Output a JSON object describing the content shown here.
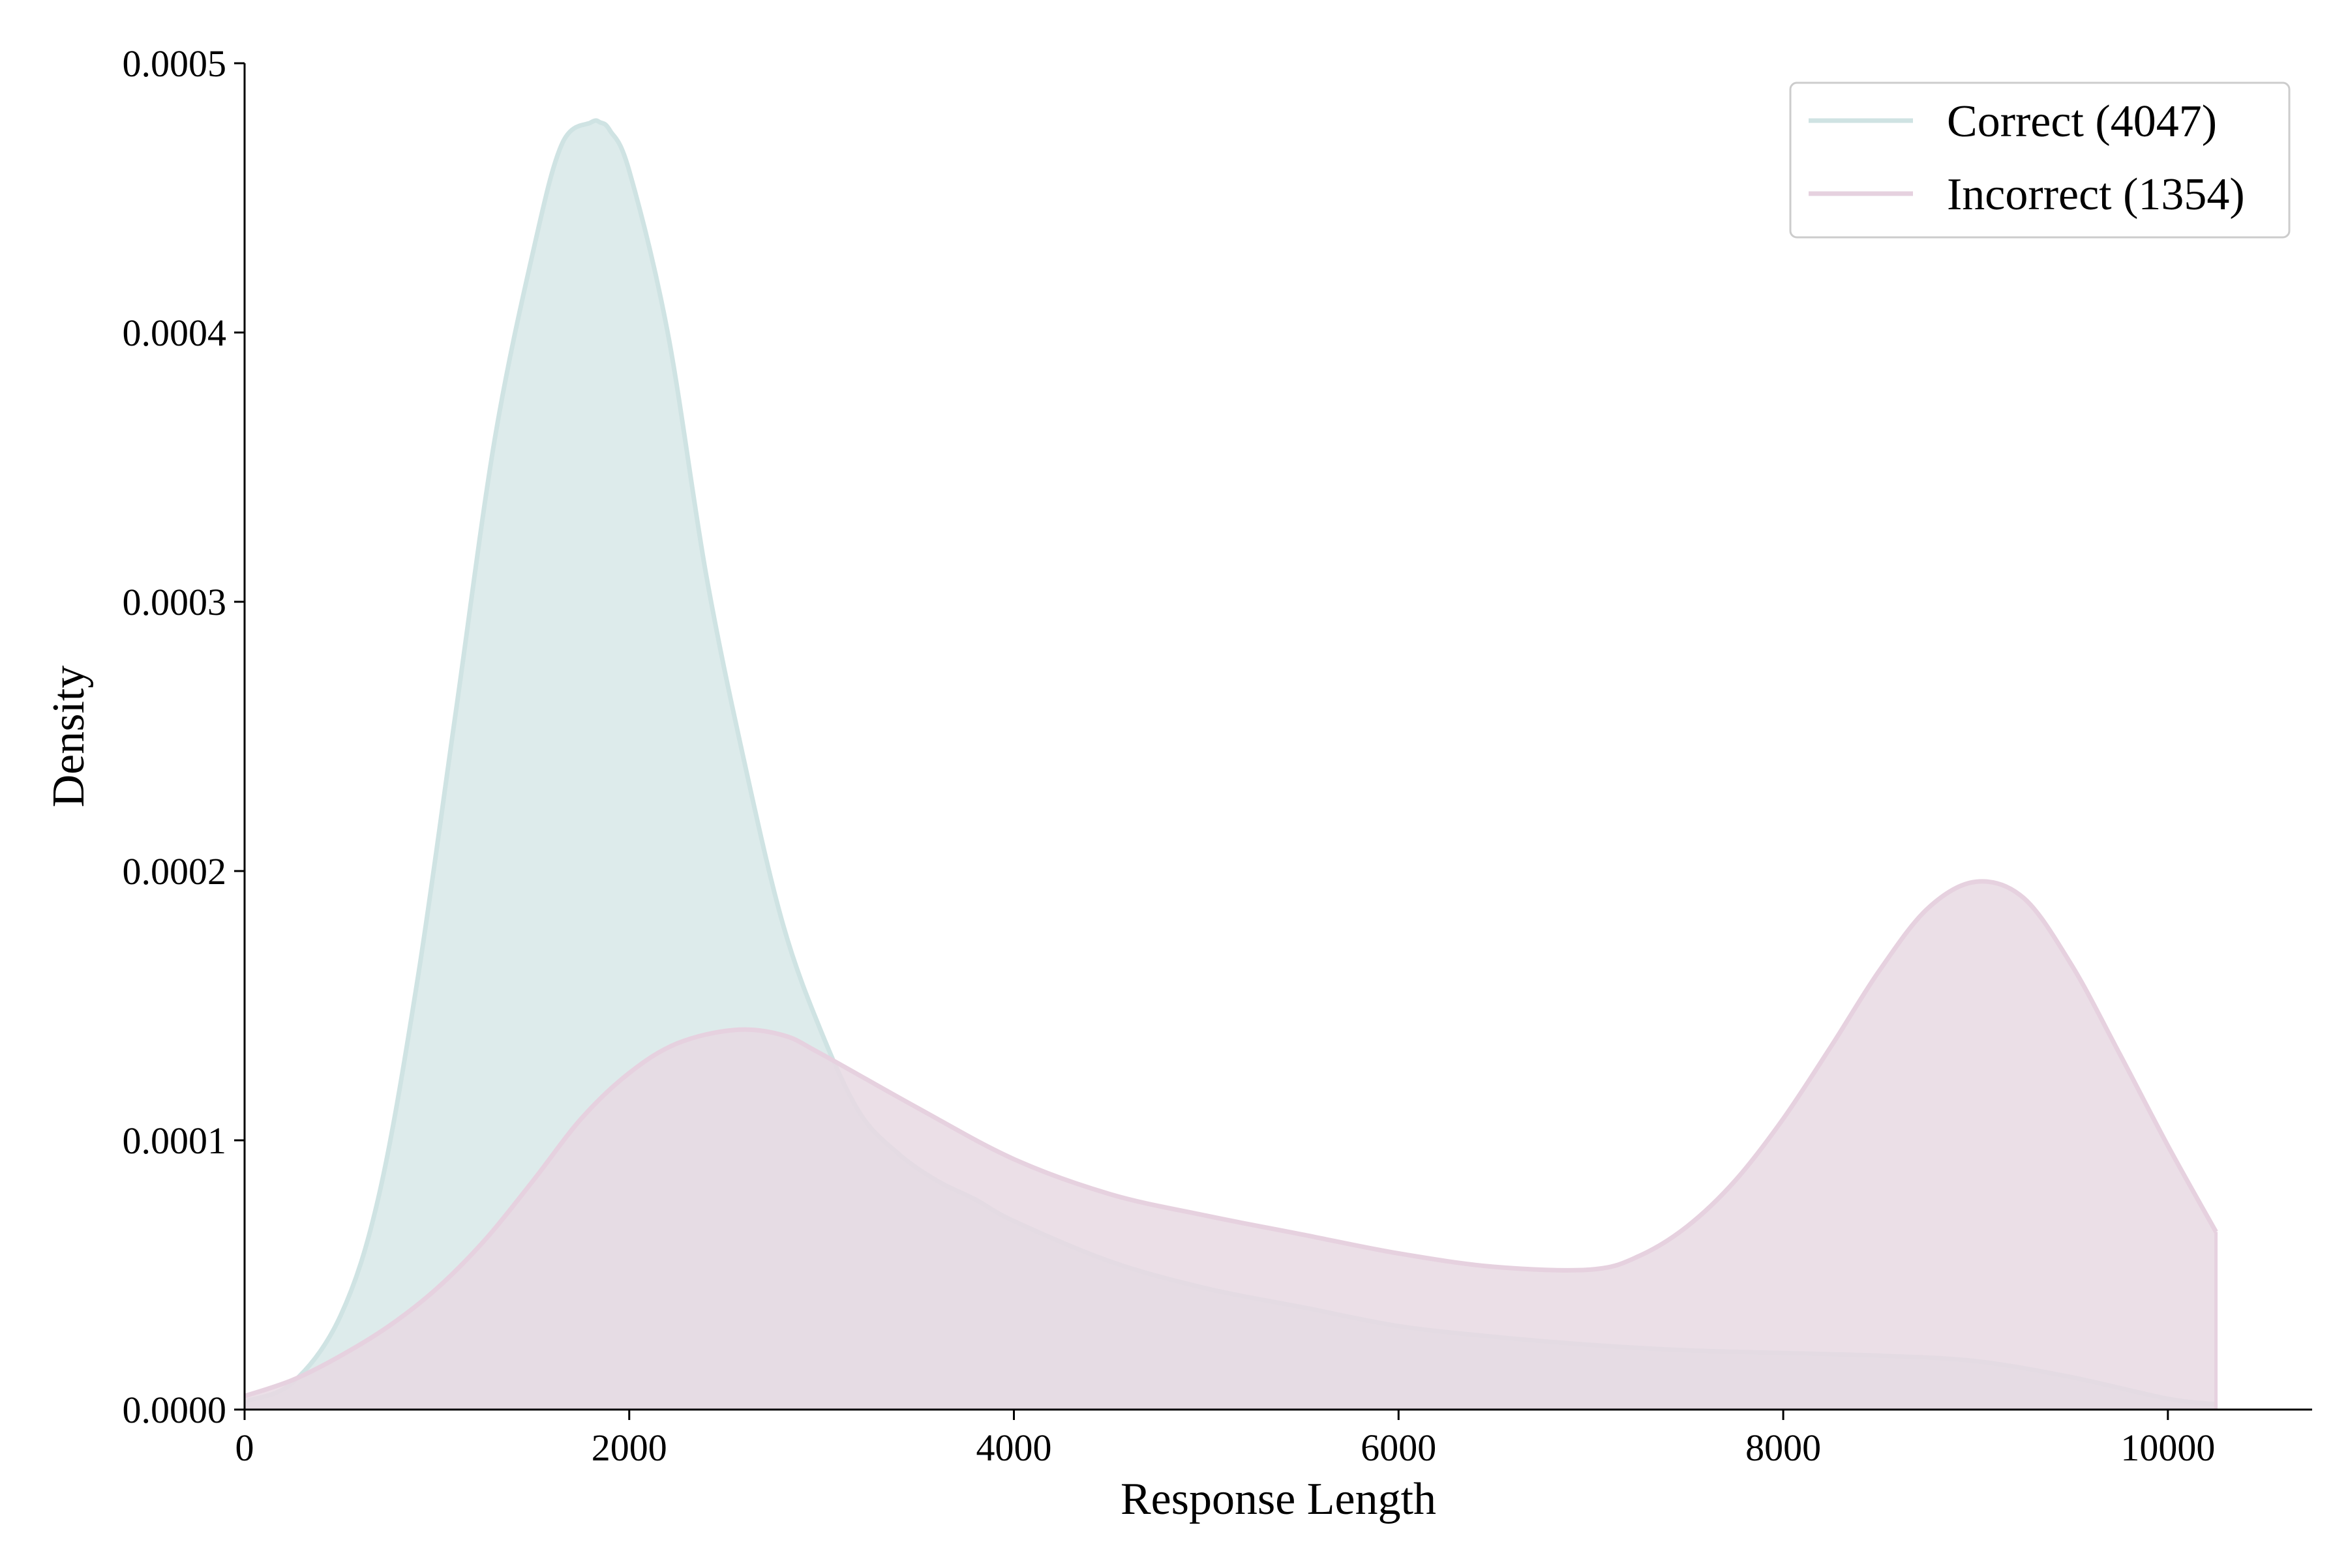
{
  "chart_data": {
    "type": "area",
    "title": "",
    "xlabel": "Response Length",
    "ylabel": "Density",
    "xlim": [
      0,
      10750
    ],
    "ylim": [
      0,
      0.0005
    ],
    "x_ticks": [
      "0",
      "2000",
      "4000",
      "6000",
      "8000",
      "10000"
    ],
    "x_tick_values": [
      0,
      2000,
      4000,
      6000,
      8000,
      10000
    ],
    "y_ticks": [
      "0.0000",
      "0.0001",
      "0.0002",
      "0.0003",
      "0.0004",
      "0.0005"
    ],
    "y_tick_values": [
      0,
      0.0001,
      0.0002,
      0.0003,
      0.0004,
      0.0005
    ],
    "grid": false,
    "legend_position": "top-right",
    "series": [
      {
        "name": "Correct (4047)",
        "color": "#cfe3e3",
        "fill": "#d7e7e7",
        "x": [
          0,
          250,
          500,
          700,
          900,
          1100,
          1300,
          1500,
          1650,
          1800,
          1850,
          1900,
          2000,
          2200,
          2400,
          2600,
          2800,
          3000,
          3200,
          3400,
          3600,
          3800,
          4000,
          4500,
          5000,
          5500,
          6000,
          6500,
          7000,
          7500,
          8000,
          8500,
          9000,
          9500,
          10000,
          10250
        ],
        "values": [
          3e-06,
          1e-05,
          3.5e-05,
          8e-05,
          0.00016,
          0.00026,
          0.00036,
          0.00043,
          0.00047,
          0.000478,
          0.000478,
          0.000475,
          0.00046,
          0.0004,
          0.00031,
          0.00024,
          0.00018,
          0.00014,
          0.00011,
          9.5e-05,
          8.5e-05,
          7.8e-05,
          7e-05,
          5.5e-05,
          4.5e-05,
          3.8e-05,
          3.1e-05,
          2.7e-05,
          2.4e-05,
          2.2e-05,
          2.1e-05,
          2e-05,
          1.8e-05,
          1.2e-05,
          4e-06,
          2e-06
        ]
      },
      {
        "name": "Incorrect (1354)",
        "color": "#e6d1df",
        "fill": "#e8d9e3",
        "x": [
          0,
          250,
          500,
          750,
          1000,
          1250,
          1500,
          1750,
          2000,
          2250,
          2550,
          2800,
          3000,
          3500,
          4000,
          4500,
          5000,
          5500,
          6000,
          6500,
          7000,
          7250,
          7500,
          7750,
          8000,
          8250,
          8500,
          8750,
          9000,
          9250,
          9500,
          9750,
          10000,
          10250
        ],
        "values": [
          5e-06,
          1.1e-05,
          2e-05,
          3.1e-05,
          4.5e-05,
          6.3e-05,
          8.5e-05,
          0.000108,
          0.000125,
          0.000136,
          0.000141,
          0.000139,
          0.000132,
          0.000112,
          9.3e-05,
          8e-05,
          7.2e-05,
          6.5e-05,
          5.8e-05,
          5.3e-05,
          5.2e-05,
          5.7e-05,
          6.8e-05,
          8.5e-05,
          0.000108,
          0.000135,
          0.000163,
          0.000186,
          0.000196,
          0.00019,
          0.000165,
          0.000132,
          9.8e-05,
          6.6e-05
        ]
      }
    ]
  }
}
